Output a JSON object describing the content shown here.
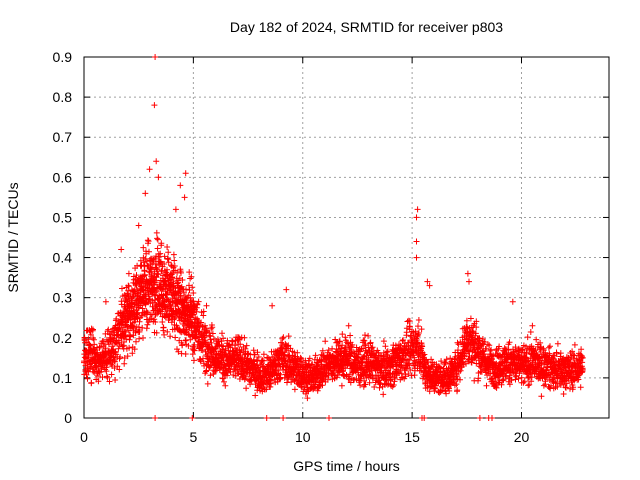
{
  "chart_data": {
    "type": "scatter",
    "title": "Day 182 of 2024, SRMTID for receiver p803",
    "xlabel": "GPS time / hours",
    "ylabel": "SRMTID / TECUs",
    "xlim": [
      0,
      24
    ],
    "ylim": [
      0,
      0.9
    ],
    "xticks": [
      0,
      5,
      10,
      15,
      20
    ],
    "xtick_labels": [
      "0",
      "5",
      "10",
      "15",
      "20"
    ],
    "yticks": [
      0,
      0.1,
      0.2,
      0.3,
      0.4,
      0.5,
      0.6,
      0.7,
      0.8,
      0.9
    ],
    "ytick_labels": [
      "0",
      "0.1",
      "0.2",
      "0.3",
      "0.4",
      "0.5",
      "0.6",
      "0.7",
      "0.8",
      "0.9"
    ],
    "grid": true,
    "marker": "+",
    "color": "#ff0000",
    "series": [
      {
        "name": "SRMTID",
        "profile": [
          [
            0.0,
            0.16
          ],
          [
            0.5,
            0.15
          ],
          [
            1.0,
            0.15
          ],
          [
            1.5,
            0.2
          ],
          [
            2.0,
            0.25
          ],
          [
            2.5,
            0.3
          ],
          [
            3.0,
            0.33
          ],
          [
            3.5,
            0.33
          ],
          [
            4.0,
            0.3
          ],
          [
            4.5,
            0.27
          ],
          [
            5.0,
            0.24
          ],
          [
            5.5,
            0.19
          ],
          [
            6.0,
            0.16
          ],
          [
            6.5,
            0.14
          ],
          [
            7.0,
            0.15
          ],
          [
            7.5,
            0.13
          ],
          [
            8.0,
            0.11
          ],
          [
            8.5,
            0.11
          ],
          [
            9.0,
            0.15
          ],
          [
            9.5,
            0.13
          ],
          [
            10.0,
            0.11
          ],
          [
            10.5,
            0.1
          ],
          [
            11.0,
            0.13
          ],
          [
            11.5,
            0.14
          ],
          [
            12.0,
            0.15
          ],
          [
            12.5,
            0.13
          ],
          [
            13.0,
            0.14
          ],
          [
            13.5,
            0.12
          ],
          [
            14.0,
            0.13
          ],
          [
            14.5,
            0.15
          ],
          [
            15.0,
            0.17
          ],
          [
            15.3,
            0.18
          ],
          [
            15.6,
            0.12
          ],
          [
            16.0,
            0.1
          ],
          [
            16.5,
            0.1
          ],
          [
            17.0,
            0.12
          ],
          [
            17.5,
            0.2
          ],
          [
            18.0,
            0.17
          ],
          [
            18.5,
            0.13
          ],
          [
            19.0,
            0.13
          ],
          [
            19.5,
            0.14
          ],
          [
            20.0,
            0.13
          ],
          [
            20.5,
            0.14
          ],
          [
            21.0,
            0.13
          ],
          [
            21.5,
            0.12
          ],
          [
            22.0,
            0.12
          ],
          [
            22.5,
            0.12
          ],
          [
            22.8,
            0.13
          ]
        ],
        "peaks": [
          [
            3.25,
            0.9
          ],
          [
            3.22,
            0.78
          ],
          [
            3.3,
            0.64
          ],
          [
            3.4,
            0.6
          ],
          [
            3.0,
            0.62
          ],
          [
            2.8,
            0.56
          ],
          [
            4.4,
            0.58
          ],
          [
            4.65,
            0.61
          ],
          [
            4.6,
            0.55
          ],
          [
            4.2,
            0.52
          ],
          [
            1.7,
            0.42
          ],
          [
            2.5,
            0.48
          ],
          [
            15.25,
            0.52
          ],
          [
            15.2,
            0.5
          ],
          [
            15.2,
            0.44
          ],
          [
            15.2,
            0.4
          ],
          [
            17.55,
            0.36
          ],
          [
            17.6,
            0.34
          ],
          [
            15.7,
            0.34
          ],
          [
            15.8,
            0.33
          ],
          [
            19.6,
            0.29
          ],
          [
            9.25,
            0.32
          ],
          [
            8.6,
            0.28
          ],
          [
            5.6,
            0.28
          ],
          [
            12.1,
            0.23
          ],
          [
            20.5,
            0.23
          ],
          [
            1.0,
            0.29
          ]
        ],
        "zeros": [
          3.25,
          4.95,
          8.35,
          9.1,
          11.2,
          15.45,
          15.55,
          18.1,
          18.5,
          18.65
        ]
      }
    ]
  }
}
